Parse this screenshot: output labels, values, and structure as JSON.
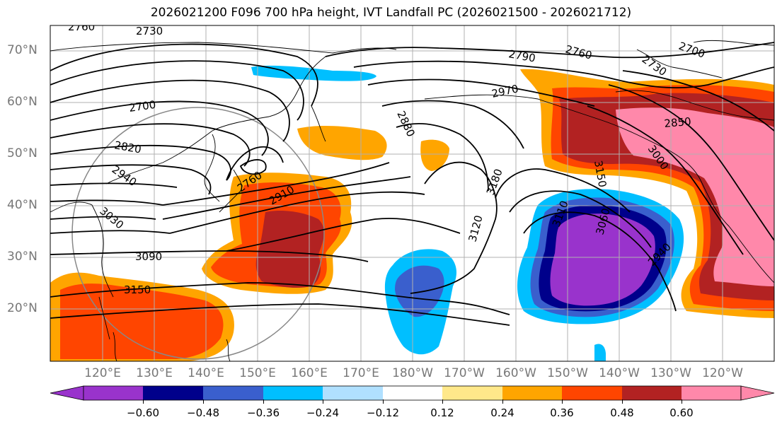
{
  "title": "2026021200 F096 700 hPa height, IVT Landfall PC (2026021500 - 2026021712)",
  "map": {
    "lat_labels": [
      "70°N",
      "60°N",
      "50°N",
      "40°N",
      "30°N",
      "20°N"
    ],
    "lon_labels": [
      "120°E",
      "130°E",
      "140°E",
      "150°E",
      "160°E",
      "170°E",
      "180°W",
      "170°W",
      "160°W",
      "150°W",
      "140°W",
      "130°W",
      "120°W"
    ],
    "contour_labels": [
      "2760",
      "2730",
      "2760",
      "2790",
      "2730",
      "2700",
      "2700",
      "2970",
      "2850",
      "2880",
      "3000",
      "2820",
      "3150",
      "2760",
      "2910",
      "2940",
      "3180",
      "3030",
      "3120",
      "3060",
      "3090",
      "2940",
      "3150",
      "3110"
    ]
  },
  "colorbar": {
    "colors": [
      "#9933cc",
      "#00008b",
      "#3a5fcd",
      "#00bfff",
      "#b0e0ff",
      "#ffffff",
      "#ffe88a",
      "#ffa500",
      "#ff4500",
      "#b22222",
      "#ff88aa"
    ],
    "tick_labels": [
      "−0.60",
      "−0.48",
      "−0.36",
      "−0.24",
      "−0.12",
      "0.12",
      "0.24",
      "0.36",
      "0.48",
      "0.60"
    ]
  }
}
